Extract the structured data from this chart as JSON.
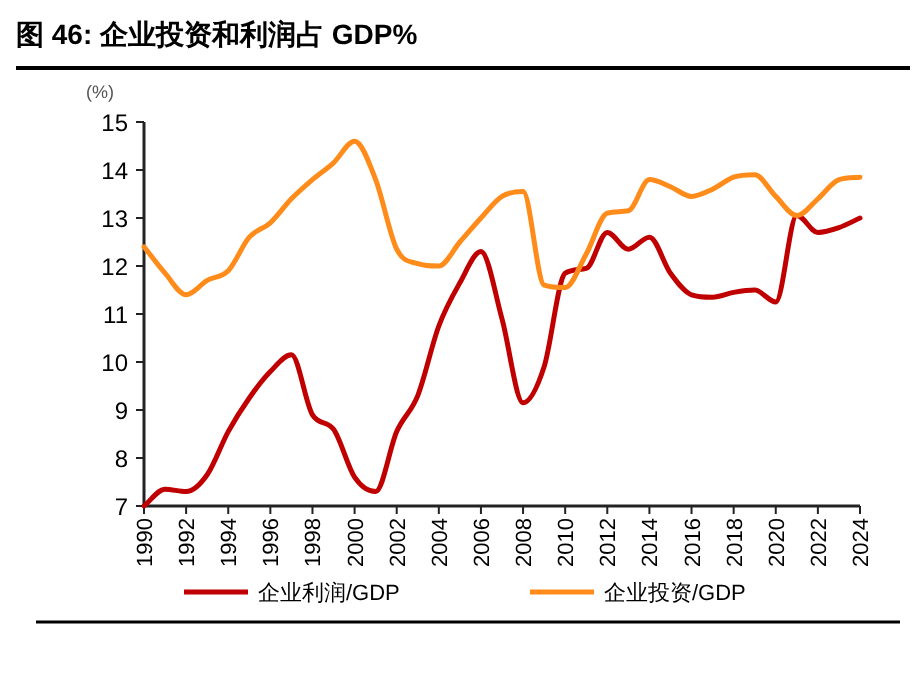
{
  "chart_data": {
    "type": "line",
    "title": "图 46: 企业投资和利润占 GDP%",
    "ylabel": "(%)",
    "x": [
      1990,
      1991,
      1992,
      1993,
      1994,
      1995,
      1996,
      1997,
      1998,
      1999,
      2000,
      2001,
      2002,
      2003,
      2004,
      2005,
      2006,
      2007,
      2008,
      2009,
      2010,
      2011,
      2012,
      2013,
      2014,
      2015,
      2016,
      2017,
      2018,
      2019,
      2020,
      2021,
      2022,
      2023,
      2024
    ],
    "series": [
      {
        "name": "企业利润/GDP",
        "color": "#c00000",
        "values": [
          7.0,
          7.35,
          7.3,
          7.65,
          8.55,
          9.25,
          9.8,
          10.15,
          8.9,
          8.6,
          7.6,
          7.3,
          8.55,
          9.3,
          10.75,
          11.65,
          12.3,
          10.9,
          9.15,
          9.9,
          11.85,
          11.95,
          12.7,
          12.35,
          12.6,
          11.85,
          11.4,
          11.35,
          11.45,
          11.5,
          11.25,
          13.05,
          12.7,
          12.8,
          13.0
        ]
      },
      {
        "name": "企业投资/GDP",
        "color": "#ff8c1a",
        "values": [
          12.4,
          11.85,
          11.4,
          11.7,
          11.9,
          12.6,
          12.9,
          13.4,
          13.8,
          14.15,
          14.6,
          13.8,
          12.35,
          12.05,
          12.0,
          12.5,
          13.0,
          13.45,
          13.55,
          11.6,
          11.55,
          12.25,
          13.1,
          13.15,
          13.8,
          13.65,
          13.45,
          13.6,
          13.85,
          13.9,
          13.45,
          13.05,
          13.4,
          13.8,
          13.85
        ]
      }
    ],
    "xlim": [
      1990,
      2024
    ],
    "xticks": [
      1990,
      1992,
      1994,
      1996,
      1998,
      2000,
      2002,
      2004,
      2006,
      2008,
      2010,
      2012,
      2014,
      2016,
      2018,
      2020,
      2022,
      2024
    ],
    "ylim": [
      7,
      15
    ],
    "yticks": [
      7,
      8,
      9,
      10,
      11,
      12,
      13,
      14,
      15
    ],
    "grid": false,
    "legend": "bottom",
    "marker": "none",
    "line_style": "solid"
  }
}
